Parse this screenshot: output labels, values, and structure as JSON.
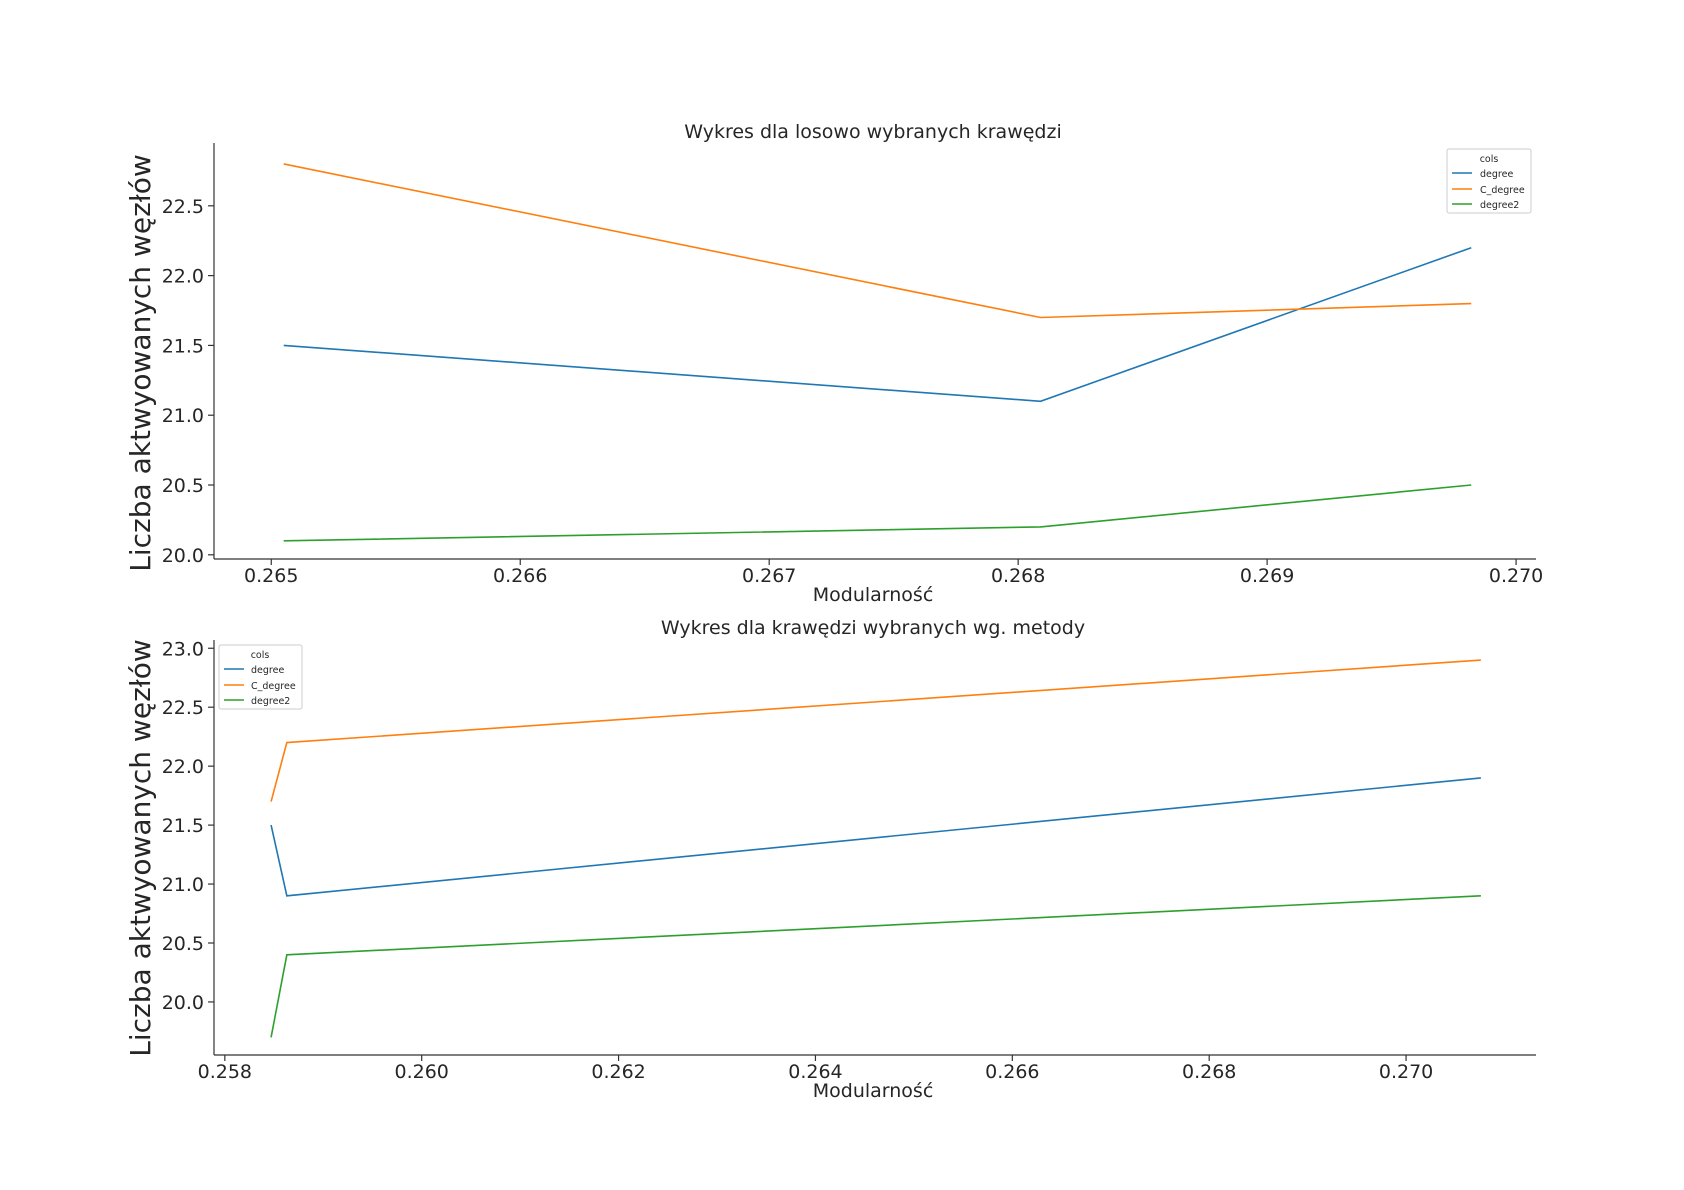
{
  "chart_data": [
    {
      "type": "line",
      "title": "Wykres dla losowo wybranych krawędzi",
      "xlabel": "Modularność",
      "ylabel": "Liczba aktwyowanych węzłów",
      "xlim": [
        0.26477,
        0.27008
      ],
      "ylim": [
        19.97,
        22.95
      ],
      "x_ticks": [
        0.265,
        0.266,
        0.267,
        0.268,
        0.269,
        0.27
      ],
      "x_tick_labels": [
        "0.265",
        "0.266",
        "0.267",
        "0.268",
        "0.269",
        "0.270"
      ],
      "y_ticks": [
        20.0,
        20.5,
        21.0,
        21.5,
        22.0,
        22.5
      ],
      "y_tick_labels": [
        "20.0",
        "20.5",
        "21.0",
        "21.5",
        "22.0",
        "22.5"
      ],
      "grid": false,
      "legend": {
        "title": "cols",
        "position": "top-right"
      },
      "x": [
        0.26505,
        0.26809,
        0.26982
      ],
      "series": [
        {
          "name": "degree",
          "color": "#1f77b4",
          "values": [
            21.5,
            21.1,
            22.2
          ]
        },
        {
          "name": "C_degree",
          "color": "#ff7f0e",
          "values": [
            22.8,
            21.7,
            21.8
          ]
        },
        {
          "name": "degree2",
          "color": "#2ca02c",
          "values": [
            20.1,
            20.2,
            20.5
          ]
        }
      ]
    },
    {
      "type": "line",
      "title": "Wykres dla krawędzi wybranych wg. metody",
      "xlabel": "Modularność",
      "ylabel": "Liczba aktwyowanych węzłów",
      "xlim": [
        0.25789,
        0.27132
      ],
      "ylim": [
        19.55,
        23.07
      ],
      "x_ticks": [
        0.258,
        0.26,
        0.262,
        0.264,
        0.266,
        0.268,
        0.27
      ],
      "x_tick_labels": [
        "0.258",
        "0.260",
        "0.262",
        "0.264",
        "0.266",
        "0.268",
        "0.270"
      ],
      "y_ticks": [
        20.0,
        20.5,
        21.0,
        21.5,
        22.0,
        22.5,
        23.0
      ],
      "y_tick_labels": [
        "20.0",
        "20.5",
        "21.0",
        "21.5",
        "22.0",
        "22.5",
        "23.0"
      ],
      "grid": false,
      "legend": {
        "title": "cols",
        "position": "top-left"
      },
      "x": [
        0.25847,
        0.25863,
        0.27076
      ],
      "series": [
        {
          "name": "degree",
          "color": "#1f77b4",
          "values": [
            21.5,
            20.9,
            21.9
          ]
        },
        {
          "name": "C_degree",
          "color": "#ff7f0e",
          "values": [
            21.7,
            22.2,
            22.9
          ]
        },
        {
          "name": "degree2",
          "color": "#2ca02c",
          "values": [
            19.7,
            20.4,
            20.9
          ]
        }
      ]
    }
  ]
}
